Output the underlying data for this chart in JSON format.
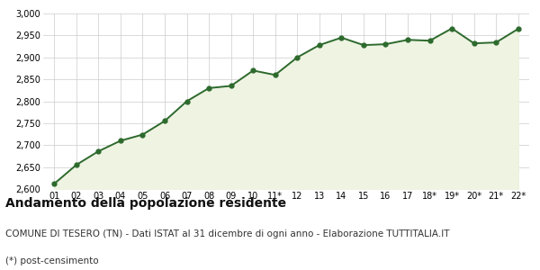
{
  "x_labels": [
    "01",
    "02",
    "03",
    "04",
    "05",
    "06",
    "07",
    "08",
    "09",
    "10",
    "11*",
    "12",
    "13",
    "14",
    "15",
    "16",
    "17",
    "18*",
    "19*",
    "20*",
    "21*",
    "22*"
  ],
  "values": [
    2612,
    2655,
    2686,
    2710,
    2724,
    2755,
    2800,
    2830,
    2835,
    2870,
    2860,
    2900,
    2928,
    2945,
    2928,
    2930,
    2940,
    2938,
    2966,
    2932,
    2934,
    2965
  ],
  "line_color": "#2d6a2d",
  "fill_color": "#eef3e2",
  "marker_color": "#2d6a2d",
  "bg_color": "#ffffff",
  "grid_color": "#cccccc",
  "ylim": [
    2600,
    3000
  ],
  "yticks": [
    2600,
    2650,
    2700,
    2750,
    2800,
    2850,
    2900,
    2950,
    3000
  ],
  "title": "Andamento della popolazione residente",
  "subtitle": "COMUNE DI TESERO (TN) - Dati ISTAT al 31 dicembre di ogni anno - Elaborazione TUTTITALIA.IT",
  "footnote": "(*) post-censimento",
  "title_fontsize": 10,
  "subtitle_fontsize": 7.5,
  "footnote_fontsize": 7.5
}
